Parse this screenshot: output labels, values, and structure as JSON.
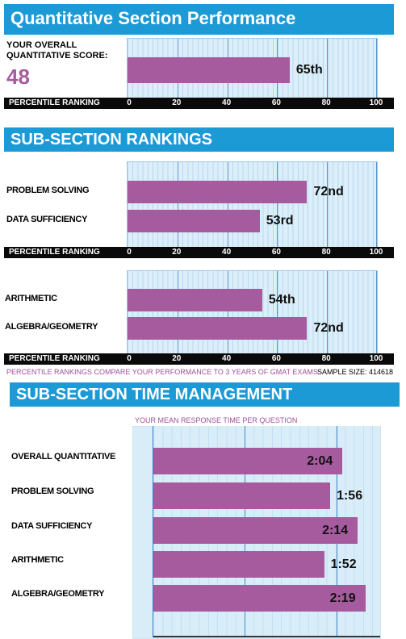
{
  "header1": "Quantitative Section Performance",
  "header2": "SUB-SECTION RANKINGS",
  "header3": "SUB-SECTION TIME MANAGEMENT",
  "overall": {
    "label_line1": "YOUR OVERALL",
    "label_line2": "QUANTITATIVE SCORE:",
    "score": "48"
  },
  "axis": {
    "title": "PERCENTILE RANKING",
    "ticks": [
      "0",
      "20",
      "40",
      "60",
      "80",
      "100"
    ]
  },
  "footnote": "PERCENTILE RANKINGS COMPARE YOUR PERFORMANCE TO 3 YEARS OF GMAT EXAMS",
  "sample_size": "SAMPLE SIZE: 414618",
  "time_subtitle": "YOUR MEAN RESPONSE TIME PER QUESTION",
  "colors": {
    "header": "#1c9ad6",
    "bar": "#a65b9e",
    "plot_bg": "#dbeef9",
    "axis_bar": "#0a0a0a"
  },
  "chart_data": [
    {
      "type": "bar",
      "orientation": "horizontal",
      "categories": [
        ""
      ],
      "values": [
        65
      ],
      "data_labels": [
        "65th"
      ],
      "xlabel": "PERCENTILE RANKING",
      "xlim": [
        0,
        100
      ],
      "xticks": [
        0,
        20,
        40,
        60,
        80,
        100
      ]
    },
    {
      "type": "bar",
      "orientation": "horizontal",
      "categories": [
        "PROBLEM SOLVING",
        "DATA SUFFICIENCY"
      ],
      "values": [
        72,
        53
      ],
      "data_labels": [
        "72nd",
        "53rd"
      ],
      "xlabel": "PERCENTILE RANKING",
      "xlim": [
        0,
        100
      ],
      "xticks": [
        0,
        20,
        40,
        60,
        80,
        100
      ]
    },
    {
      "type": "bar",
      "orientation": "horizontal",
      "categories": [
        "ARITHMETIC",
        "ALGEBRA/GEOMETRY"
      ],
      "values": [
        54,
        72
      ],
      "data_labels": [
        "54th",
        "72nd"
      ],
      "xlabel": "PERCENTILE RANKING",
      "xlim": [
        0,
        100
      ],
      "xticks": [
        0,
        20,
        40,
        60,
        80,
        100
      ]
    },
    {
      "type": "bar",
      "orientation": "horizontal",
      "title": "YOUR MEAN RESPONSE TIME PER QUESTION",
      "categories": [
        "OVERALL QUANTITATIVE",
        "PROBLEM SOLVING",
        "DATA SUFFICIENCY",
        "ARITHMETIC",
        "ALGEBRA/GEOMETRY"
      ],
      "values": [
        2.067,
        1.933,
        2.233,
        1.867,
        2.317
      ],
      "data_labels": [
        "2:04",
        "1:56",
        "2:14",
        "1:52",
        "2:19"
      ],
      "xlim": [
        0,
        3
      ]
    }
  ]
}
